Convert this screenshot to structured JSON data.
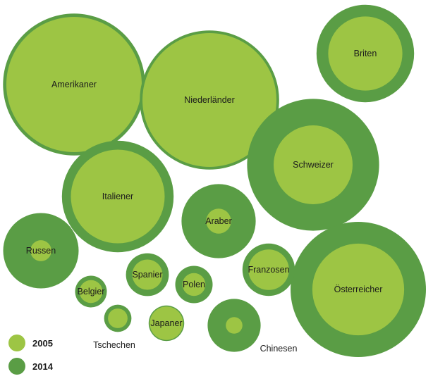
{
  "chart_data": {
    "type": "bubble",
    "title": "",
    "colors": {
      "2005": "#9dc544",
      "2014": "#5a9d45"
    },
    "legend": {
      "placement": "bottom-left",
      "entries": [
        {
          "key": "2005",
          "label": "2005",
          "color": "#9dc544"
        },
        {
          "key": "2014",
          "label": "2014",
          "color": "#5a9d45"
        }
      ]
    },
    "bubbles": [
      {
        "label": "Amerikaner",
        "v2005": 1.0,
        "v2014": 1.1
      },
      {
        "label": "Niederländer",
        "v2005": 0.98,
        "v2014": 1.06
      },
      {
        "label": "Briten",
        "v2005": 0.3,
        "v2014": 0.52
      },
      {
        "label": "Italiener",
        "v2005": 0.48,
        "v2014": 0.68
      },
      {
        "label": "Schweizer",
        "v2005": 0.34,
        "v2014": 0.95
      },
      {
        "label": "Araber",
        "v2005": 0.034,
        "v2014": 0.3
      },
      {
        "label": "Russen",
        "v2005": 0.024,
        "v2014": 0.31
      },
      {
        "label": "Österreicher",
        "v2005": 0.46,
        "v2014": 1.0
      },
      {
        "label": "Spanier",
        "v2005": 0.05,
        "v2014": 0.1
      },
      {
        "label": "Franzosen",
        "v2005": 0.09,
        "v2014": 0.15
      },
      {
        "label": "Polen",
        "v2005": 0.029,
        "v2014": 0.076
      },
      {
        "label": "Belgier",
        "v2005": 0.029,
        "v2014": 0.055
      },
      {
        "label": "Tschechen",
        "v2005": 0.021,
        "v2014": 0.041
      },
      {
        "label": "Japaner",
        "v2005": 0.061,
        "v2014": 0.069
      },
      {
        "label": "Chinesen",
        "v2005": 0.015,
        "v2014": 0.153
      }
    ]
  }
}
